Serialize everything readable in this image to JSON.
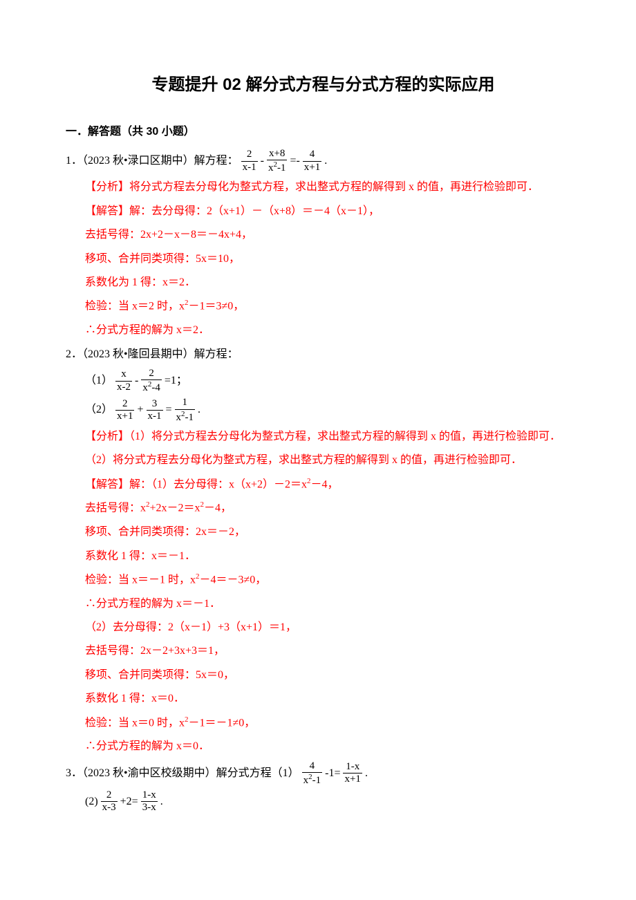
{
  "title": "专题提升 02 解分式方程与分式方程的实际应用",
  "section": "一．解答题（共 30 小题）",
  "q1": {
    "prefix": "1．（2023 秋•渌口区期中）解方程：",
    "frac1n": "2",
    "frac1d": "x-1",
    "frac2n": "x+8",
    "frac2d_a": "x",
    "frac2d_b": "-1",
    "frac3n": "4",
    "frac3d": "x+1",
    "analysis": "【分析】将分式方程去分母化为整式方程，求出整式方程的解得到 x 的值，再进行检验即可．",
    "ans_lead": "【解答】解：去分母得：2（x+1）－（x+8）＝－4（x－1），",
    "l2": "去括号得：2x+2－x－8＝－4x+4，",
    "l3": "移项、合并同类项得：5x＝10，",
    "l4": "系数化为 1 得：x＝2．",
    "l5a": "检验：当 x＝2 时，x",
    "l5b": "－1＝3≠0，",
    "l6": "∴分式方程的解为 x＝2．"
  },
  "q2": {
    "prefix": "2．（2023 秋•隆回县期中）解方程：",
    "p1_lead": "（1）",
    "p1_f1n": "x",
    "p1_f1d": "x-2",
    "p1_f2n": "2",
    "p1_f2da": "x",
    "p1_f2db": "-4",
    "p1_tail": "=1；",
    "p2_lead": "（2）",
    "p2_f1n": "2",
    "p2_f1d": "x+1",
    "p2_f2n": "3",
    "p2_f2d": "x-1",
    "p2_f3n": "1",
    "p2_f3da": "x",
    "p2_f3db": "-1",
    "a1": "【分析】（1）将分式方程去分母化为整式方程，求出整式方程的解得到 x 的值，再进行检验即可．",
    "a2": "（2）将分式方程去分母化为整式方程，求出整式方程的解得到 x 的值，再进行检验即可．",
    "s1a": "【解答】解：（1）去分母得：x（x+2）－2＝x",
    "s1b": "－4，",
    "s2a": "去括号得：x",
    "s2b": "+2x－2＝x",
    "s2c": "－4，",
    "s3": "移项、合并同类项得：2x＝－2，",
    "s4": "系数化 1 得：x＝－1．",
    "s5a": "检验：当 x＝－1 时，x",
    "s5b": "－4＝－3≠0，",
    "s6": "∴分式方程的解为 x＝－1．",
    "s7": "（2）去分母得：2（x－1）+3（x+1）＝1，",
    "s8": "去括号得：2x－2+3x+3＝1，",
    "s9": "移项、合并同类项得：5x＝0，",
    "s10": "系数化 1 得：x＝0．",
    "s11a": "检验：当 x＝0 时，x",
    "s11b": "－1＝－1≠0，",
    "s12": "∴分式方程的解为 x＝0．"
  },
  "q3": {
    "prefix": "3．（2023 秋•渝中区校级期中）解分式方程（1）",
    "f1n": "4",
    "f1da": "x",
    "f1db": "-1",
    "mid": "-1=",
    "f2n": "1-x",
    "f2d": "x+1",
    "p2": "(2)",
    "f3n": "2",
    "f3d": "x-3",
    "mid2": "+2=",
    "f4n": "1-x",
    "f4d": "3-x"
  }
}
